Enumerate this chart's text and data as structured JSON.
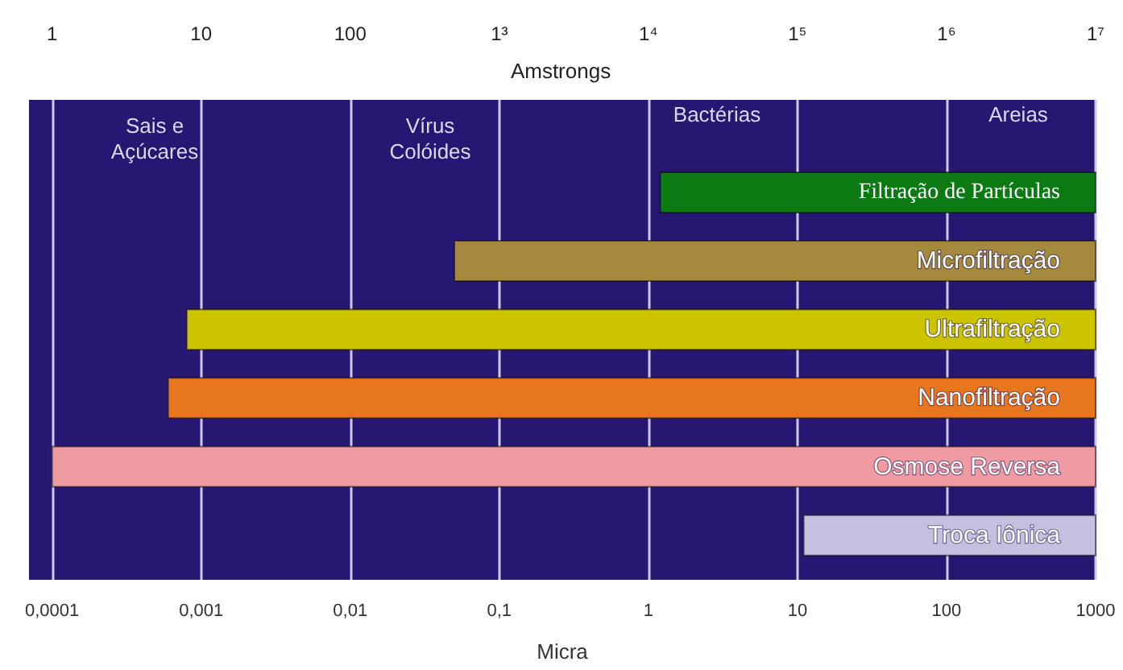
{
  "chart_data": {
    "type": "bar",
    "orientation": "horizontal",
    "xlabel": "Micra",
    "x2label": "Amstrongs",
    "categories": [
      "Filtração de Partículas",
      "Microfiltração",
      "Ultrafiltração",
      "Nanofiltração",
      "Osmose Reversa",
      "Troca Iônica"
    ],
    "base": [
      1.2,
      0.05,
      0.0008,
      0.0006,
      0.0001,
      11
    ],
    "values": [
      998.8,
      999.95,
      999.9992,
      999.9994,
      999.9999,
      989
    ],
    "colors": [
      "#0b7a12",
      "#a58a3e",
      "#cdc400",
      "#e8761e",
      "#f09aa2",
      "#c6c0e0"
    ],
    "log": "x",
    "xlim": [
      7e-05,
      1000
    ],
    "xticks": [
      {
        "value": 0.0001,
        "label": "0,0001"
      },
      {
        "value": 0.001,
        "label": "0,001"
      },
      {
        "value": 0.01,
        "label": "0,01"
      },
      {
        "value": 0.1,
        "label": "0,1"
      },
      1,
      10,
      100,
      1000
    ],
    "grid": "x",
    "annotations": [
      "1",
      "10",
      "100",
      "1³",
      "1⁴",
      "1⁵",
      "1⁶",
      "1⁷",
      "Sais e\nAçúcares",
      "Vírus\nColóides",
      "Bactérias",
      "Areias"
    ]
  }
}
